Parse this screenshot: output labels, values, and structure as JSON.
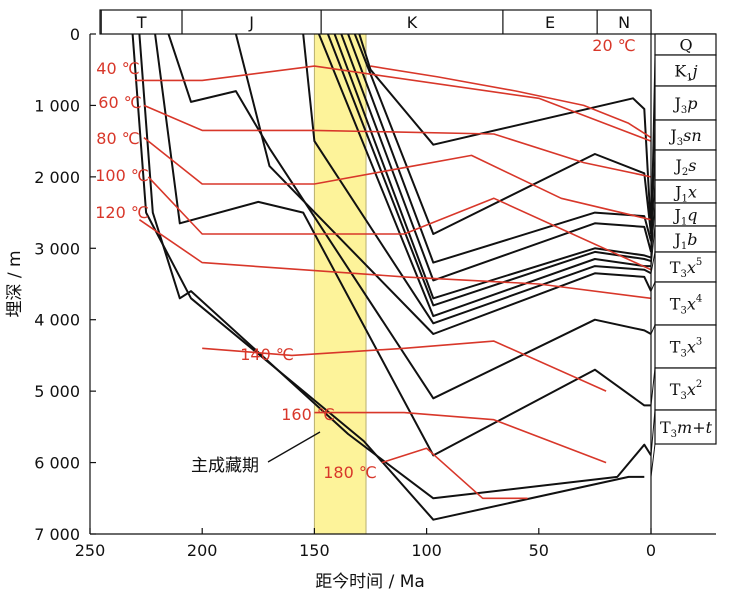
{
  "chart_data": {
    "type": "line",
    "title": "",
    "xlabel": "距今时间 / Ma",
    "ylabel": "埋深 / m",
    "xlim": [
      250,
      0
    ],
    "ylim": [
      0,
      7000
    ],
    "x_ticks": [
      250,
      200,
      150,
      100,
      50,
      0
    ],
    "x_tick_labels": [
      "250",
      "200",
      "150",
      "100",
      "50",
      "0"
    ],
    "y_ticks": [
      0,
      1000,
      2000,
      3000,
      4000,
      5000,
      6000,
      7000
    ],
    "y_tick_labels": [
      "0",
      "1 000",
      "2 000",
      "3 000",
      "4 000",
      "5 000",
      "6 000",
      "7 000"
    ],
    "periods": [
      {
        "label": "T",
        "start": 245,
        "end": 209
      },
      {
        "label": "J",
        "start": 209,
        "end": 147
      },
      {
        "label": "K",
        "start": 147,
        "end": 66
      },
      {
        "label": "E",
        "start": 66,
        "end": 24
      },
      {
        "label": "N",
        "start": 24,
        "end": 0
      }
    ],
    "highlight": {
      "label": "主成藏期",
      "start": 150,
      "end": 127
    },
    "burial_lines": [
      {
        "name": "K1j",
        "points": [
          [
            0,
            2750
          ],
          [
            3,
            1050
          ],
          [
            8,
            900
          ],
          [
            97,
            1550
          ],
          [
            125,
            500
          ],
          [
            130,
            0
          ]
        ]
      },
      {
        "name": "J3p",
        "points": [
          [
            0,
            2800
          ],
          [
            3,
            1950
          ],
          [
            25,
            1680
          ],
          [
            97,
            2800
          ],
          [
            132,
            0
          ]
        ]
      },
      {
        "name": "J3sn",
        "points": [
          [
            0,
            2900
          ],
          [
            3,
            2550
          ],
          [
            25,
            2500
          ],
          [
            97,
            3200
          ],
          [
            135,
            0
          ]
        ]
      },
      {
        "name": "J2s",
        "points": [
          [
            0,
            3050
          ],
          [
            3,
            2700
          ],
          [
            25,
            2650
          ],
          [
            97,
            3450
          ],
          [
            138,
            0
          ]
        ]
      },
      {
        "name": "J1x",
        "points": [
          [
            0,
            3130
          ],
          [
            3,
            3100
          ],
          [
            25,
            3000
          ],
          [
            97,
            3700
          ],
          [
            141,
            0
          ]
        ]
      },
      {
        "name": "J1q",
        "points": [
          [
            0,
            3180
          ],
          [
            3,
            3150
          ],
          [
            25,
            3050
          ],
          [
            97,
            3800
          ],
          [
            144,
            0
          ]
        ]
      },
      {
        "name": "J1b",
        "points": [
          [
            0,
            3250
          ],
          [
            3,
            3250
          ],
          [
            25,
            3150
          ],
          [
            97,
            3950
          ],
          [
            148,
            0
          ]
        ]
      },
      {
        "name": "T3x5",
        "points": [
          [
            0,
            3350
          ],
          [
            3,
            3300
          ],
          [
            25,
            3250
          ],
          [
            97,
            4050
          ],
          [
            150,
            1500
          ],
          [
            155,
            0
          ]
        ]
      },
      {
        "name": "T3x4",
        "points": [
          [
            0,
            3600
          ],
          [
            3,
            3400
          ],
          [
            25,
            3350
          ],
          [
            97,
            4200
          ],
          [
            170,
            1850
          ],
          [
            185,
            0
          ]
        ]
      },
      {
        "name": "T3x3",
        "points": [
          [
            0,
            4200
          ],
          [
            3,
            4150
          ],
          [
            25,
            4000
          ],
          [
            97,
            5100
          ],
          [
            170,
            1600
          ],
          [
            185,
            800
          ],
          [
            205,
            950
          ],
          [
            215,
            0
          ]
        ]
      },
      {
        "name": "T3x2",
        "points": [
          [
            0,
            5200
          ],
          [
            3,
            5200
          ],
          [
            25,
            4700
          ],
          [
            97,
            5900
          ],
          [
            155,
            2500
          ],
          [
            175,
            2350
          ],
          [
            210,
            2650
          ],
          [
            221,
            0
          ]
        ]
      },
      {
        "name": "T3m+t",
        "points": [
          [
            0,
            5900
          ],
          [
            3,
            5750
          ],
          [
            15,
            6200
          ],
          [
            97,
            6500
          ],
          [
            135,
            5600
          ],
          [
            205,
            3600
          ],
          [
            210,
            3700
          ],
          [
            222,
            2500
          ],
          [
            228,
            0
          ]
        ]
      },
      {
        "name": "basement",
        "points": [
          [
            3,
            6200
          ],
          [
            10,
            6200
          ],
          [
            97,
            6800
          ],
          [
            128,
            5700
          ],
          [
            205,
            3700
          ],
          [
            225,
            2500
          ],
          [
            231,
            0
          ]
        ]
      }
    ],
    "isotherms": [
      {
        "label": "20 ℃",
        "points": [
          [
            0,
            1450
          ],
          [
            10,
            1250
          ],
          [
            30,
            1000
          ],
          [
            60,
            800
          ],
          [
            95,
            600
          ],
          [
            125,
            450
          ]
        ]
      },
      {
        "label": "40 ℃",
        "points": [
          [
            0,
            1500
          ],
          [
            50,
            900
          ],
          [
            150,
            450
          ],
          [
            200,
            650
          ],
          [
            230,
            650
          ]
        ]
      },
      {
        "label": "60 ℃",
        "points": [
          [
            0,
            2000
          ],
          [
            30,
            1800
          ],
          [
            70,
            1400
          ],
          [
            150,
            1350
          ],
          [
            200,
            1350
          ],
          [
            226,
            1000
          ]
        ]
      },
      {
        "label": "80 ℃",
        "points": [
          [
            0,
            2600
          ],
          [
            40,
            2300
          ],
          [
            80,
            1700
          ],
          [
            150,
            2100
          ],
          [
            200,
            2100
          ],
          [
            226,
            1450
          ]
        ]
      },
      {
        "label": "100 ℃",
        "points": [
          [
            0,
            3300
          ],
          [
            70,
            2300
          ],
          [
            110,
            2800
          ],
          [
            200,
            2800
          ],
          [
            224,
            2000
          ]
        ]
      },
      {
        "label": "120 ℃",
        "points": [
          [
            0,
            3700
          ],
          [
            50,
            3500
          ],
          [
            110,
            3400
          ],
          [
            200,
            3200
          ],
          [
            228,
            2600
          ]
        ]
      },
      {
        "label": "140 ℃",
        "points": [
          [
            20,
            5000
          ],
          [
            70,
            4300
          ],
          [
            110,
            4400
          ],
          [
            160,
            4500
          ],
          [
            200,
            4400
          ]
        ]
      },
      {
        "label": "160 ℃",
        "points": [
          [
            20,
            6000
          ],
          [
            70,
            5400
          ],
          [
            110,
            5300
          ],
          [
            150,
            5300
          ]
        ]
      },
      {
        "label": "180 ℃",
        "points": [
          [
            55,
            6500
          ],
          [
            75,
            6500
          ],
          [
            100,
            5800
          ],
          [
            120,
            6000
          ]
        ]
      }
    ],
    "formations": [
      "Q",
      "K1j",
      "J3p",
      "J3sn",
      "J2s",
      "J1x",
      "J1q",
      "J1b",
      "T3x5",
      "T3x4",
      "T3x3",
      "T3x2",
      "T3m+t"
    ],
    "formation_labels": [
      {
        "name": "Q",
        "base": "Q",
        "sub": "",
        "tail": ""
      },
      {
        "name": "K1j",
        "base": "K",
        "sub": "1",
        "tail": "j"
      },
      {
        "name": "J3p",
        "base": "J",
        "sub": "3",
        "tail": "p"
      },
      {
        "name": "J3sn",
        "base": "J",
        "sub": "3",
        "tail": "sn"
      },
      {
        "name": "J2s",
        "base": "J",
        "sub": "2",
        "tail": "s"
      },
      {
        "name": "J1x",
        "base": "J",
        "sub": "1",
        "tail": "x"
      },
      {
        "name": "J1q",
        "base": "J",
        "sub": "1",
        "tail": "q"
      },
      {
        "name": "J1b",
        "base": "J",
        "sub": "1",
        "tail": "b"
      },
      {
        "name": "T3x5",
        "base": "T",
        "sub": "3",
        "tail": "x",
        "sup": "5"
      },
      {
        "name": "T3x4",
        "base": "T",
        "sub": "3",
        "tail": "x",
        "sup": "4"
      },
      {
        "name": "T3x3",
        "base": "T",
        "sub": "3",
        "tail": "x",
        "sup": "3"
      },
      {
        "name": "T3x2",
        "base": "T",
        "sub": "3",
        "tail": "x",
        "sup": "2"
      },
      {
        "name": "T3m+t",
        "base": "T",
        "sub": "3",
        "tail": "m+t"
      }
    ]
  },
  "colors": {
    "burial": "#111111",
    "isotherm": "#d8372a",
    "highlight_fill": "#fdf39a",
    "axis": "#111111"
  }
}
